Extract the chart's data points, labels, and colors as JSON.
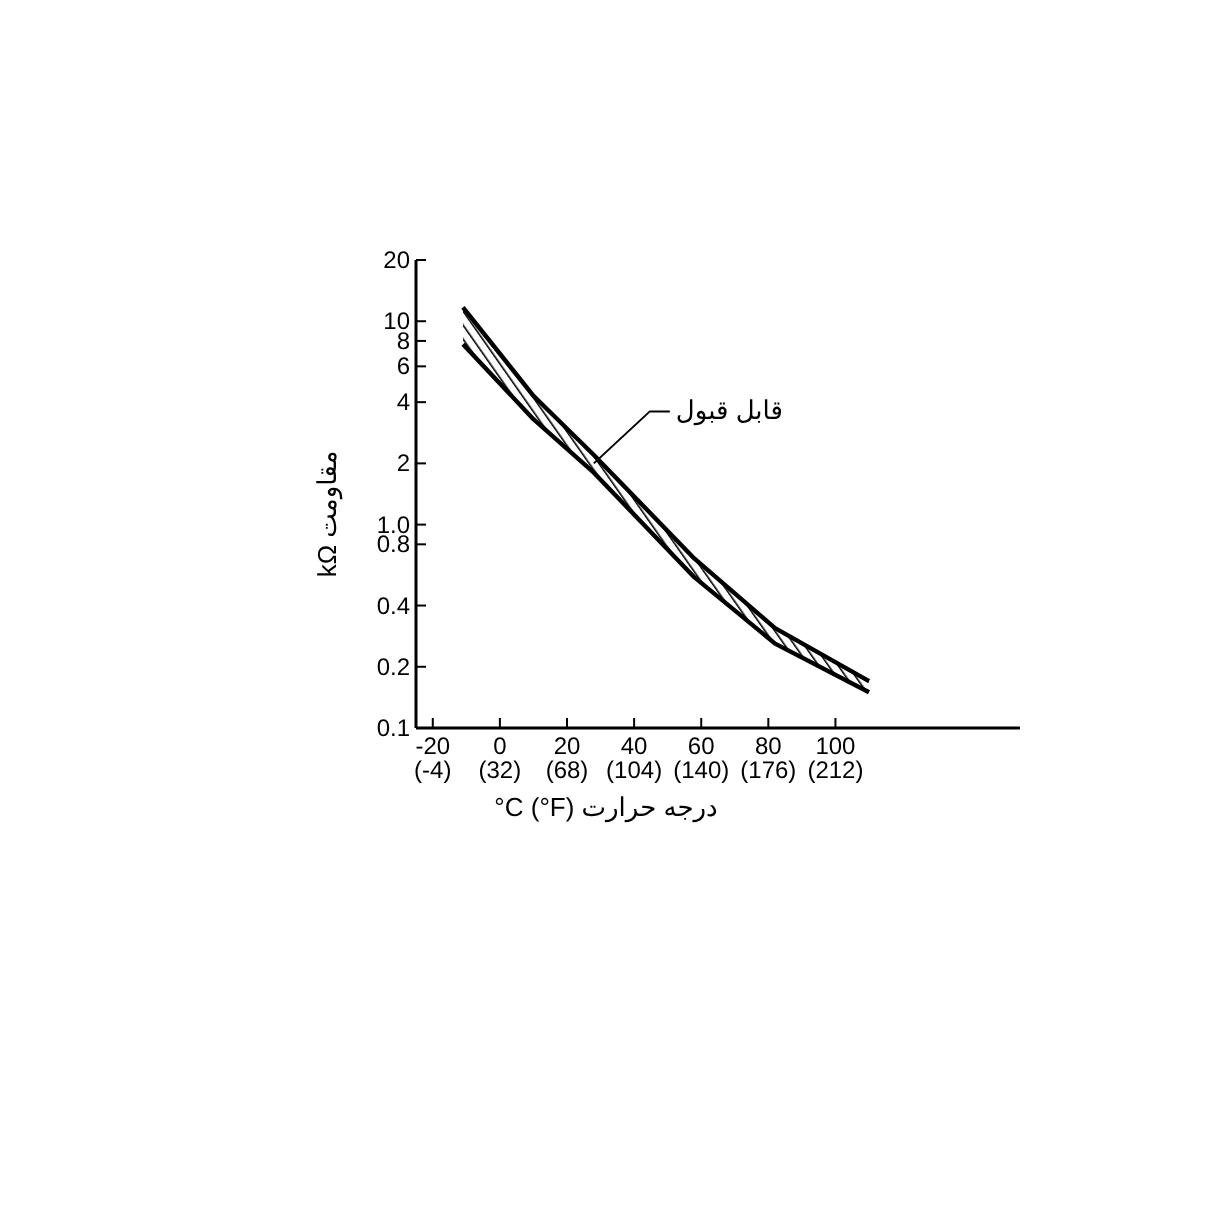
{
  "chart_data": {
    "type": "line",
    "xlabel": "°C (°F) درجه حرارت",
    "ylabel": "kΩ مقاومت",
    "x": [
      -11,
      10,
      28,
      58,
      82,
      110
    ],
    "series": [
      {
        "color": "#000000",
        "values": [
          11.7,
          4.3,
          2.2,
          0.68,
          0.31,
          0.17
        ]
      },
      {
        "color": "#000000",
        "values": [
          7.7,
          3.3,
          1.8,
          0.55,
          0.26,
          0.15
        ]
      }
    ],
    "annotations": [
      {
        "text": "قابل قبول",
        "x": 28,
        "y": 2.0
      }
    ],
    "log": true,
    "xlim": [
      -25,
      155
    ],
    "ylim": [
      0.1,
      20
    ],
    "xticks": [
      -20,
      0,
      20,
      40,
      60,
      80,
      100
    ],
    "x2lim": [
      -13,
      311
    ],
    "x2ticks": [
      {
        "value": -4,
        "label": "(-4)"
      },
      {
        "value": 32,
        "label": "(32)"
      },
      {
        "value": 68,
        "label": "(68)"
      },
      {
        "value": 104,
        "label": "(104)"
      },
      {
        "value": 140,
        "label": "(140)"
      },
      {
        "value": 176,
        "label": "(176)"
      },
      {
        "value": 212,
        "label": "(212)"
      }
    ],
    "yticks": [
      0.1,
      0.2,
      0.4,
      0.8,
      {
        "value": 1,
        "label": "1.0"
      },
      2,
      4,
      6,
      8,
      10,
      20
    ],
    "grid": false,
    "marker": "none",
    "line_style": "solid"
  }
}
